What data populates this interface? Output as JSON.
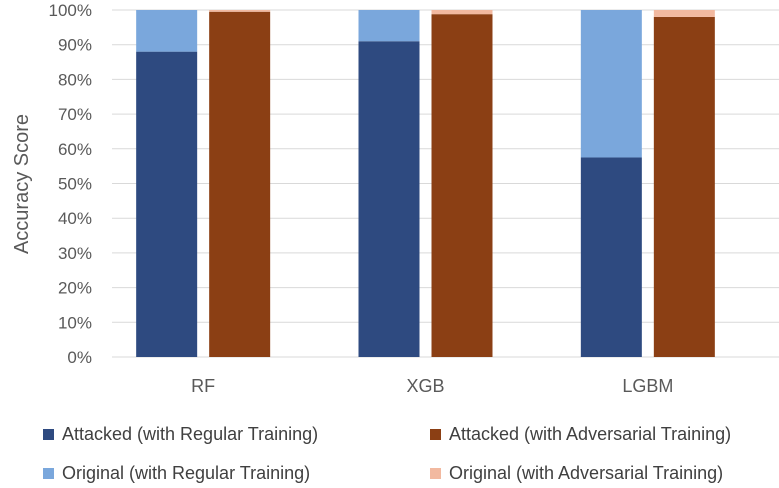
{
  "chart_data": {
    "type": "bar",
    "stacked": true,
    "title": "",
    "xlabel": "",
    "ylabel": "Accuracy Score",
    "ylim": [
      0,
      100
    ],
    "y_tick_format": "percent",
    "y_ticks": [
      "0%",
      "10%",
      "20%",
      "30%",
      "40%",
      "50%",
      "60%",
      "70%",
      "80%",
      "90%",
      "100%"
    ],
    "categories": [
      "RF",
      "XGB",
      "LGBM"
    ],
    "groups": [
      {
        "name": "Regular Training",
        "series": [
          {
            "name": "Attacked (with Regular Training)",
            "color": "#2e4a80",
            "values": [
              88,
              91,
              57.5
            ]
          },
          {
            "name": "Original (with Regular Training)",
            "color": "#7aa7dc",
            "values": [
              12,
              9,
              42.5
            ]
          }
        ]
      },
      {
        "name": "Adversarial Training",
        "series": [
          {
            "name": "Attacked (with Adversarial Training)",
            "color": "#8b3f14",
            "values": [
              99.5,
              98.8,
              98
            ]
          },
          {
            "name": "Original (with Adversarial Training)",
            "color": "#f2b9a0",
            "values": [
              0.5,
              1.2,
              2
            ]
          }
        ]
      }
    ],
    "legend": [
      {
        "label": "Attacked (with Regular Training)",
        "color": "#2e4a80"
      },
      {
        "label": "Attacked (with Adversarial Training)",
        "color": "#8b3f14"
      },
      {
        "label": "Original (with Regular Training)",
        "color": "#7aa7dc"
      },
      {
        "label": "Original (with Adversarial Training)",
        "color": "#f2b9a0"
      }
    ],
    "legend_position": "bottom",
    "gridlines": true
  }
}
